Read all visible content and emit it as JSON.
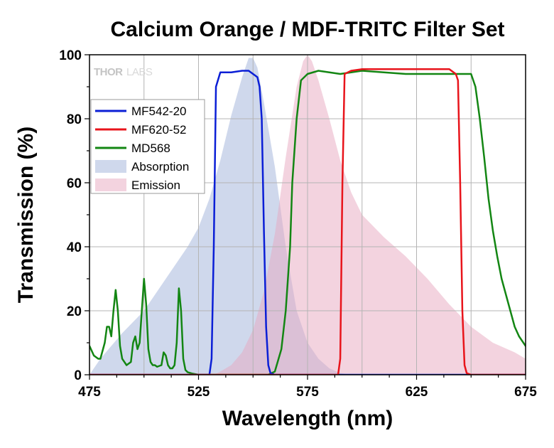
{
  "chart_data": {
    "type": "line",
    "title": "Calcium Orange / MDF-TRITC Filter Set",
    "xlabel": "Wavelength (nm)",
    "ylabel": "Transmission (%)",
    "xlim": [
      475,
      675
    ],
    "ylim": [
      0,
      100
    ],
    "x_ticks": [
      475,
      525,
      575,
      625,
      675
    ],
    "y_ticks": [
      0,
      20,
      40,
      60,
      80,
      100
    ],
    "grid": true,
    "legend_position": "left",
    "watermark": "THORLABS",
    "series": [
      {
        "name": "MF542-20",
        "kind": "line",
        "color": "#0b1fd6",
        "x": [
          475,
          530,
          531,
          532,
          533,
          535,
          540,
          545,
          548,
          550,
          552,
          553,
          554,
          555,
          556,
          557,
          558,
          560,
          675
        ],
        "y": [
          0,
          0,
          5,
          40,
          90,
          94.5,
          94.5,
          95,
          95,
          94,
          93,
          90,
          80,
          45,
          15,
          3,
          0.5,
          0,
          0
        ]
      },
      {
        "name": "MF620-52",
        "kind": "line",
        "color": "#e8141b",
        "x": [
          475,
          589,
          590,
          591,
          592,
          595,
          600,
          610,
          620,
          630,
          640,
          643,
          644,
          645,
          646,
          647,
          648,
          650,
          675
        ],
        "y": [
          0,
          0,
          5,
          60,
          94,
          95,
          95.5,
          95.5,
          95.5,
          95.5,
          95.5,
          94,
          92,
          60,
          20,
          3,
          0.5,
          0,
          0
        ]
      },
      {
        "name": "MD568",
        "kind": "line",
        "color": "#138613",
        "x": [
          475,
          477,
          479,
          480,
          482,
          483,
          484,
          485,
          486,
          487,
          488,
          489,
          490,
          492,
          494,
          495,
          496,
          497,
          498,
          499,
          500,
          501,
          502,
          503,
          504,
          505,
          506,
          508,
          509,
          510,
          511,
          512,
          513,
          514,
          515,
          516,
          517,
          518,
          519,
          520,
          522,
          525,
          550,
          557,
          560,
          563,
          565,
          567,
          568,
          570,
          572,
          575,
          580,
          590,
          600,
          620,
          640,
          650,
          652,
          654,
          656,
          658,
          660,
          662,
          664,
          666,
          668,
          670,
          672,
          675
        ],
        "y": [
          9,
          6,
          5,
          5,
          10,
          15,
          15,
          12,
          20,
          26.5,
          20,
          9,
          5,
          3,
          4,
          10,
          12,
          8,
          10,
          20,
          30,
          22,
          8,
          4,
          3,
          3,
          2.5,
          3,
          7,
          6,
          3,
          2,
          2,
          3,
          10,
          27,
          20,
          5,
          1.5,
          0.8,
          0.4,
          0,
          0,
          0,
          1,
          8,
          20,
          40,
          60,
          80,
          92,
          94,
          95,
          94,
          95,
          94,
          94,
          94,
          90,
          80,
          68,
          55,
          45,
          37,
          30,
          25,
          20,
          15,
          12,
          9
        ]
      },
      {
        "name": "Absorption",
        "kind": "area",
        "color": "#9fb1da",
        "x": [
          475,
          480,
          490,
          500,
          510,
          515,
          520,
          525,
          530,
          535,
          540,
          545,
          548,
          550,
          552,
          555,
          560,
          565,
          570,
          575,
          580,
          585,
          590,
          595
        ],
        "y": [
          0,
          5,
          13,
          20,
          30,
          35,
          40,
          46,
          55,
          67,
          81,
          93,
          99,
          99,
          96,
          85,
          65,
          40,
          20,
          10,
          5,
          2,
          0.5,
          0
        ]
      },
      {
        "name": "Emission",
        "kind": "area",
        "color": "#e8a8c0",
        "x": [
          532,
          535,
          540,
          545,
          550,
          555,
          560,
          565,
          570,
          573,
          575,
          577,
          580,
          585,
          590,
          595,
          600,
          610,
          620,
          630,
          640,
          650,
          660,
          670,
          675
        ],
        "y": [
          0,
          1,
          3,
          7,
          14,
          26,
          44,
          68,
          90,
          98,
          100,
          98,
          92,
          80,
          67,
          57,
          50,
          43,
          37,
          30,
          22,
          15,
          10,
          7,
          5
        ]
      }
    ]
  }
}
